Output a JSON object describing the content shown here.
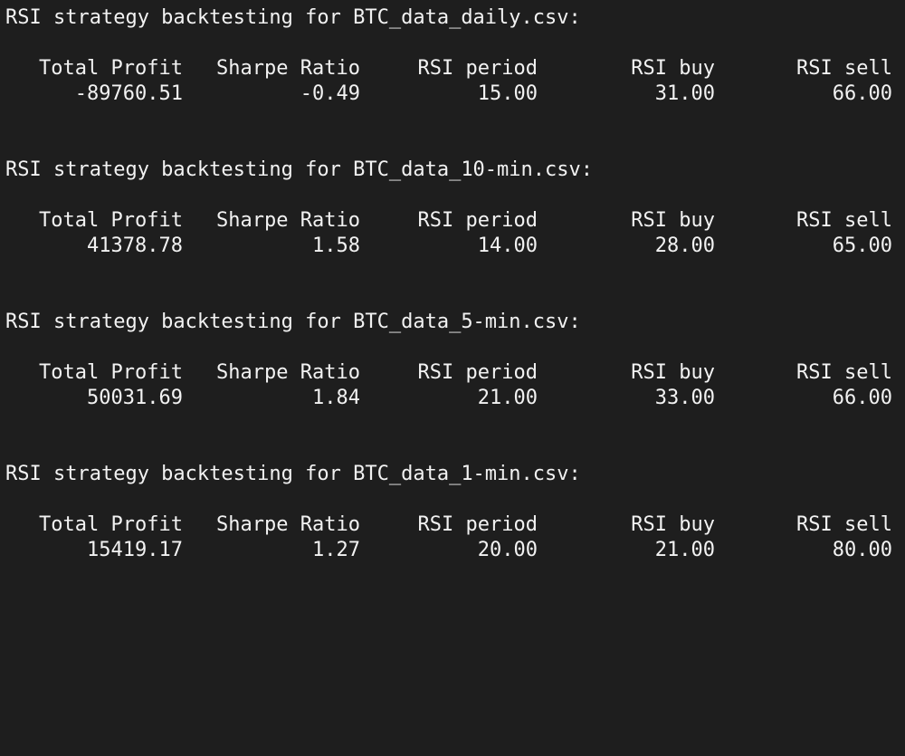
{
  "terminal": {
    "columns": [
      "Total Profit",
      "Sharpe Ratio",
      "RSI period",
      "RSI buy",
      "RSI sell"
    ],
    "blocks": [
      {
        "heading": "RSI strategy backtesting for BTC_data_daily.csv:",
        "values": [
          "-89760.51",
          "-0.49",
          "15.00",
          "31.00",
          "66.00"
        ]
      },
      {
        "heading": "RSI strategy backtesting for BTC_data_10-min.csv:",
        "values": [
          "41378.78",
          "1.58",
          "14.00",
          "28.00",
          "65.00"
        ]
      },
      {
        "heading": "RSI strategy backtesting for BTC_data_5-min.csv:",
        "values": [
          "50031.69",
          "1.84",
          "21.00",
          "33.00",
          "66.00"
        ]
      },
      {
        "heading": "RSI strategy backtesting for BTC_data_1-min.csv:",
        "values": [
          "15419.17",
          "1.27",
          "20.00",
          "21.00",
          "80.00"
        ]
      }
    ]
  }
}
